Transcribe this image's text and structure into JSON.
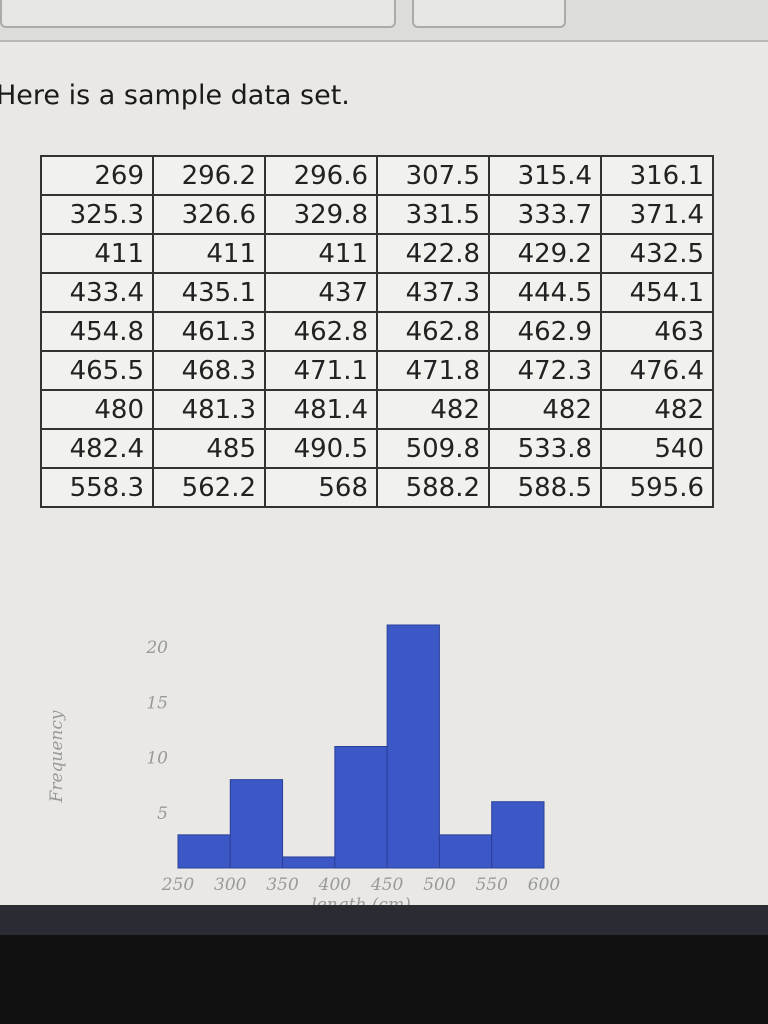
{
  "intro": "Here is a sample data set.",
  "table": {
    "rows": [
      [
        "269",
        "296.2",
        "296.6",
        "307.5",
        "315.4",
        "316.1"
      ],
      [
        "325.3",
        "326.6",
        "329.8",
        "331.5",
        "333.7",
        "371.4"
      ],
      [
        "411",
        "411",
        "411",
        "422.8",
        "429.2",
        "432.5"
      ],
      [
        "433.4",
        "435.1",
        "437",
        "437.3",
        "444.5",
        "454.1"
      ],
      [
        "454.8",
        "461.3",
        "462.8",
        "462.8",
        "462.9",
        "463"
      ],
      [
        "465.5",
        "468.3",
        "471.1",
        "471.8",
        "472.3",
        "476.4"
      ],
      [
        "480",
        "481.3",
        "481.4",
        "482",
        "482",
        "482"
      ],
      [
        "482.4",
        "485",
        "490.5",
        "509.8",
        "533.8",
        "540"
      ],
      [
        "558.3",
        "562.2",
        "568",
        "588.2",
        "588.5",
        "595.6"
      ]
    ]
  },
  "chart_data": {
    "type": "histogram",
    "xlabel": "length (cm)",
    "ylabel": "Frequency",
    "bins": [
      250,
      300,
      350,
      400,
      450,
      500,
      550,
      600
    ],
    "counts": [
      3,
      8,
      1,
      11,
      22,
      3,
      6
    ],
    "color": "#3b58c6",
    "xlim": [
      250,
      600
    ],
    "xticks": [
      250,
      300,
      350,
      400,
      450,
      500,
      550,
      600
    ],
    "ylim": [
      0,
      22
    ],
    "yticks": [
      5,
      10,
      15,
      20
    ]
  }
}
